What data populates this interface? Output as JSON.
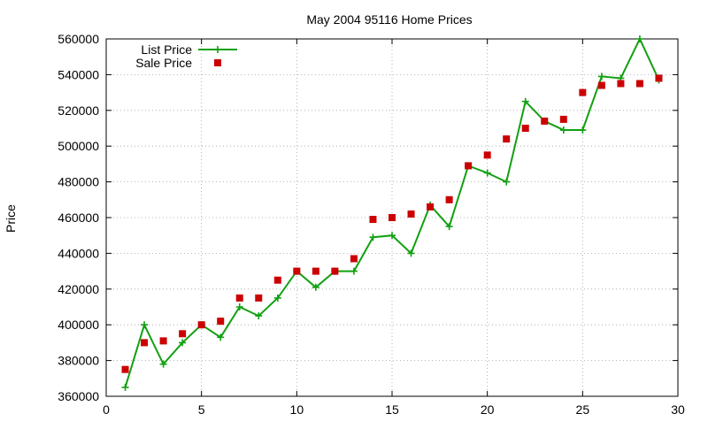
{
  "chart_data": {
    "type": "line",
    "title": "May 2004 95116 Home Prices",
    "xlabel": "",
    "ylabel": "Price",
    "xlim": [
      0,
      30
    ],
    "ylim": [
      360000,
      560000
    ],
    "x_ticks": [
      0,
      5,
      10,
      15,
      20,
      25,
      30
    ],
    "y_ticks": [
      360000,
      380000,
      400000,
      420000,
      440000,
      460000,
      480000,
      500000,
      520000,
      540000,
      560000
    ],
    "grid": true,
    "legend_position": "top-left",
    "series": [
      {
        "name": "List Price",
        "style": "line-with-cross-points",
        "color": "#11a011",
        "x": [
          1,
          2,
          3,
          4,
          5,
          6,
          7,
          8,
          9,
          10,
          11,
          12,
          13,
          14,
          15,
          16,
          17,
          18,
          19,
          20,
          21,
          22,
          23,
          24,
          25,
          26,
          27,
          28,
          29
        ],
        "values": [
          365000,
          400000,
          378000,
          390000,
          400000,
          393000,
          410000,
          405000,
          415000,
          430000,
          421000,
          430000,
          430000,
          449000,
          450000,
          440000,
          467000,
          455000,
          489000,
          485000,
          480000,
          525000,
          514000,
          509000,
          509000,
          539000,
          538000,
          560000,
          537000
        ]
      },
      {
        "name": "Sale Price",
        "style": "square-points",
        "color": "#cc0000",
        "x": [
          1,
          2,
          3,
          4,
          5,
          6,
          7,
          8,
          9,
          10,
          11,
          12,
          13,
          14,
          15,
          16,
          17,
          18,
          19,
          20,
          21,
          22,
          23,
          24,
          25,
          26,
          27,
          28,
          29
        ],
        "values": [
          375000,
          390000,
          391000,
          395000,
          400000,
          402000,
          415000,
          415000,
          425000,
          430000,
          430000,
          430000,
          437000,
          459000,
          460000,
          462000,
          466000,
          470000,
          489000,
          495000,
          504000,
          510000,
          514000,
          515000,
          530000,
          534000,
          535000,
          535000,
          538000
        ]
      }
    ]
  }
}
